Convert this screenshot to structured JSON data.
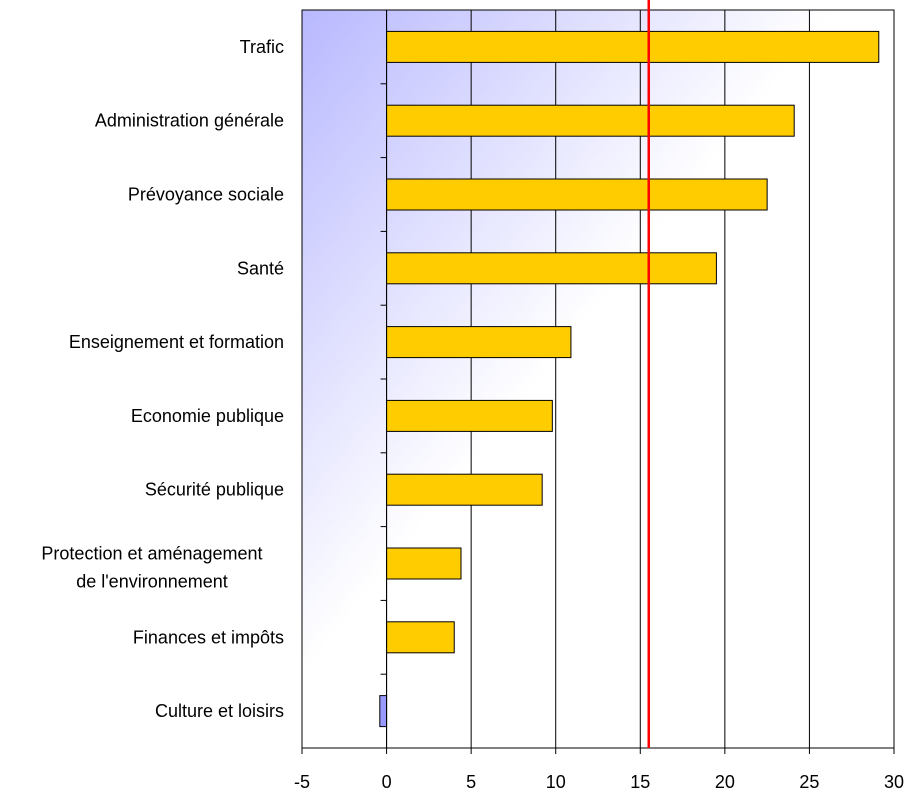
{
  "chart_data": {
    "type": "bar",
    "orientation": "horizontal",
    "categories": [
      "Trafic",
      "Administration générale",
      "Prévoyance sociale",
      "Santé",
      "Enseignement et formation",
      "Economie publique",
      "Sécurité publique",
      [
        "Protection et aménagement",
        "de l'environnement"
      ],
      "Finances et impôts",
      "Culture et loisirs"
    ],
    "values": [
      29.1,
      24.1,
      22.5,
      19.5,
      10.9,
      9.8,
      9.2,
      4.4,
      4.0,
      -0.4
    ],
    "xlim": [
      -5,
      30
    ],
    "xticks": [
      -5,
      0,
      5,
      10,
      15,
      20,
      25,
      30
    ],
    "reference_line": {
      "value": 15.5,
      "color": "#ff0000"
    },
    "grid": "vertical",
    "legend": "none",
    "colors": {
      "positive_bar": "#ffcc00",
      "negative_bar": "#9999ff",
      "bar_border": "#000000",
      "background_gradient": "#c8c8ff"
    }
  }
}
